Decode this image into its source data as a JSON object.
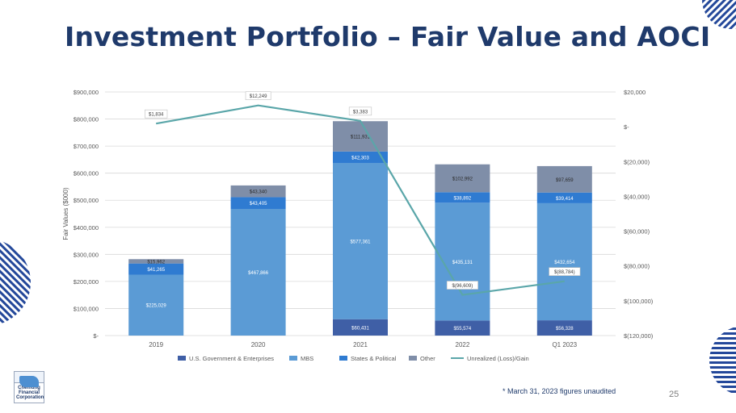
{
  "slide": {
    "title": "Investment Portfolio – Fair Value and AOCI",
    "footnote": "* March 31, 2023 figures unaudited",
    "page_number": "25",
    "logo_text": "Chemung Financial Corporation"
  },
  "colors": {
    "us_gov": "#3f5fa6",
    "mbs": "#5b9bd5",
    "states": "#2f7bd1",
    "other": "#7f8ea8",
    "line": "#5aa6a9",
    "title": "#1f3a6b",
    "decor": "#24489a"
  },
  "chart_data": {
    "type": "bar",
    "stacked": true,
    "categories": [
      "2019",
      "2020",
      "2021",
      "2022",
      "Q1 2023"
    ],
    "series": [
      {
        "name": "U.S. Government & Enterprises",
        "values": [
          0,
          0,
          60431,
          55574,
          56328
        ],
        "labels": [
          "",
          "",
          "$60,431",
          "$55,574",
          "$56,328"
        ]
      },
      {
        "name": "MBS",
        "values": [
          225029,
          467866,
          577361,
          435131,
          432654
        ],
        "labels": [
          "$225,029",
          "$467,866",
          "$577,361",
          "$435,131",
          "$432,654"
        ]
      },
      {
        "name": "States & Political",
        "values": [
          41265,
          43405,
          42303,
          38892,
          39414
        ],
        "labels": [
          "$41,265",
          "$43,405",
          "$42,303",
          "$38,892",
          "$39,414"
        ]
      },
      {
        "name": "Other",
        "values": [
          15962,
          43340,
          111931,
          102992,
          97659
        ],
        "labels": [
          "$15,962",
          "$43,340",
          "$111,931",
          "$102,992",
          "$97,659"
        ]
      }
    ],
    "line_series": {
      "name": "Unrealized (Loss)/Gain",
      "values": [
        1834,
        12249,
        3383,
        -96609,
        -88784
      ],
      "labels": [
        "$1,834",
        "$12,249",
        "$3,383",
        "$(96,609)",
        "$(88,784)"
      ]
    },
    "ylabel": "Fair Values ($000)",
    "ylim": [
      0,
      900000
    ],
    "y_ticks": [
      "$-",
      "$100,000",
      "$200,000",
      "$300,000",
      "$400,000",
      "$500,000",
      "$600,000",
      "$700,000",
      "$800,000",
      "$900,000"
    ],
    "y2lim": [
      -120000,
      20000
    ],
    "y2_ticks": [
      "$(120,000)",
      "$(100,000)",
      "$(80,000)",
      "$(60,000)",
      "$(40,000)",
      "$(20,000)",
      "$-",
      "$20,000"
    ],
    "legend": [
      "U.S. Government & Enterprises",
      "MBS",
      "States & Political",
      "Other",
      "Unrealized (Loss)/Gain"
    ],
    "legend_position": "bottom",
    "grid": true
  }
}
